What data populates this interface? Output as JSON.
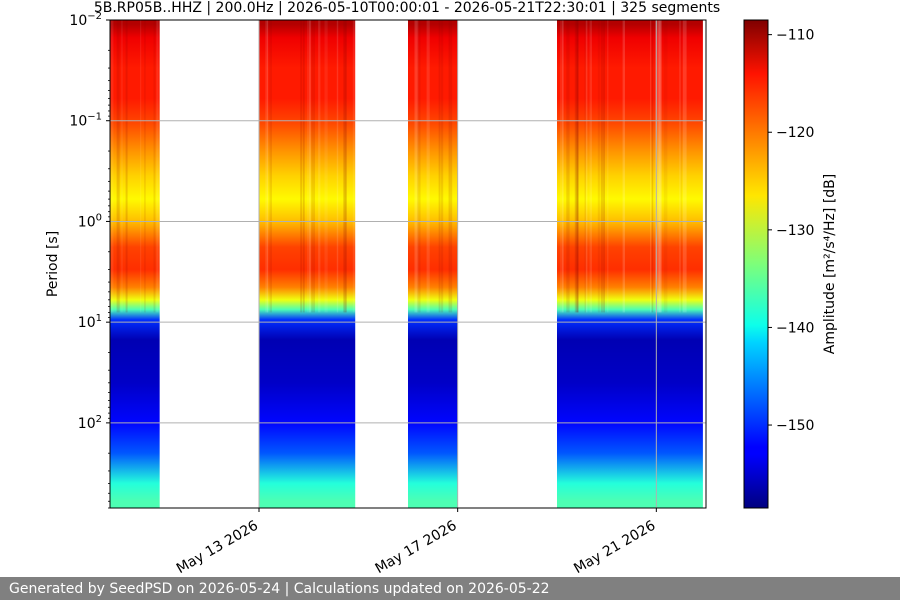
{
  "chart_data": {
    "type": "heatmap",
    "title": "5B.RP05B..HHZ | 200.0Hz | 2026-05-10T00:00:01 - 2026-05-21T22:30:01 | 325 segments",
    "ylabel": "Period [s]",
    "yscale": "log",
    "y_inverted": true,
    "ylim": [
      0.01,
      700
    ],
    "y_ticks": [
      {
        "value": 0.01,
        "base": "10",
        "exp": "−2"
      },
      {
        "value": 0.1,
        "base": "10",
        "exp": "−1"
      },
      {
        "value": 1,
        "base": "10",
        "exp": "0"
      },
      {
        "value": 10,
        "base": "10",
        "exp": "1"
      },
      {
        "value": 100,
        "base": "10",
        "exp": "2"
      }
    ],
    "xlim": [
      "2026-05-10",
      "2026-05-22"
    ],
    "x_ticks": [
      {
        "value": "2026-05-13",
        "label": "May 13 2026"
      },
      {
        "value": "2026-05-17",
        "label": "May 17 2026"
      },
      {
        "value": "2026-05-21",
        "label": "May 21 2026"
      }
    ],
    "data_segments": [
      {
        "start": "2026-05-10T00:00",
        "end": "2026-05-11T00:00"
      },
      {
        "start": "2026-05-13T00:00",
        "end": "2026-05-14T22:30"
      },
      {
        "start": "2026-05-16T00:00",
        "end": "2026-05-17T00:00"
      },
      {
        "start": "2026-05-19T00:00",
        "end": "2026-05-21T22:30"
      }
    ],
    "spectrum_profile": [
      {
        "period": 0.011,
        "amplitude": -111
      },
      {
        "period": 0.015,
        "amplitude": -114
      },
      {
        "period": 0.03,
        "amplitude": -116
      },
      {
        "period": 0.06,
        "amplitude": -116
      },
      {
        "period": 0.1,
        "amplitude": -118
      },
      {
        "period": 0.2,
        "amplitude": -122
      },
      {
        "period": 0.35,
        "amplitude": -125
      },
      {
        "period": 0.6,
        "amplitude": -127
      },
      {
        "period": 1.0,
        "amplitude": -124
      },
      {
        "period": 1.8,
        "amplitude": -118
      },
      {
        "period": 3.0,
        "amplitude": -117
      },
      {
        "period": 4.5,
        "amplitude": -121
      },
      {
        "period": 6.0,
        "amplitude": -128
      },
      {
        "period": 7.5,
        "amplitude": -136
      },
      {
        "period": 9.5,
        "amplitude": -150
      },
      {
        "period": 15,
        "amplitude": -156
      },
      {
        "period": 40,
        "amplitude": -155
      },
      {
        "period": 100,
        "amplitude": -152
      },
      {
        "period": 200,
        "amplitude": -148
      },
      {
        "period": 400,
        "amplitude": -138
      },
      {
        "period": 600,
        "amplitude": -136
      }
    ],
    "colorbar": {
      "label": "Amplitude [m²/s⁴/Hz] [dB]",
      "range": [
        -158.5,
        -108.5
      ],
      "ticks": [
        -110,
        -120,
        -130,
        -140,
        -150
      ],
      "tick_labels": [
        "−110",
        "−120",
        "−130",
        "−140",
        "−150"
      ],
      "colormap": "jet"
    },
    "grid": true
  },
  "footer": {
    "text": "Generated by SeedPSD on 2026-05-24 | Calculations updated on 2026-05-22"
  },
  "colors": {
    "footer_bg": "#808080",
    "grid": "#b0b0b0"
  }
}
